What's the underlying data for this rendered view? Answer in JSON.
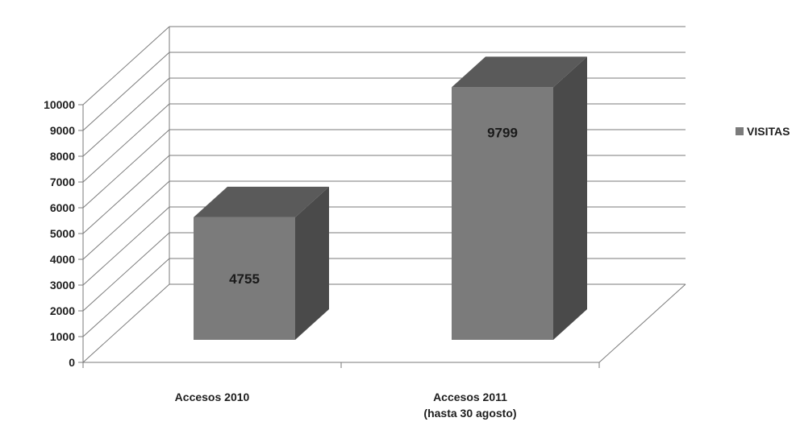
{
  "chart_data": {
    "type": "bar",
    "categories": [
      [
        "Accesos 2010"
      ],
      [
        "Accesos 2011",
        "(hasta 30 agosto)"
      ]
    ],
    "series": [
      {
        "name": "VISITAS",
        "values": [
          4755,
          9799
        ],
        "data_labels": [
          "4755",
          "9799"
        ]
      }
    ],
    "ylim": [
      0,
      10000
    ],
    "yticks": [
      0,
      1000,
      2000,
      3000,
      4000,
      5000,
      6000,
      7000,
      8000,
      9000,
      10000
    ],
    "grid": true,
    "legend": {
      "position": "right",
      "entries": [
        "VISITAS"
      ]
    },
    "colors": {
      "bar_front": "#7b7b7b",
      "bar_top": "#5a5a5a",
      "bar_side": "#4a4a4a",
      "gridline": "#7a7a7a"
    }
  }
}
